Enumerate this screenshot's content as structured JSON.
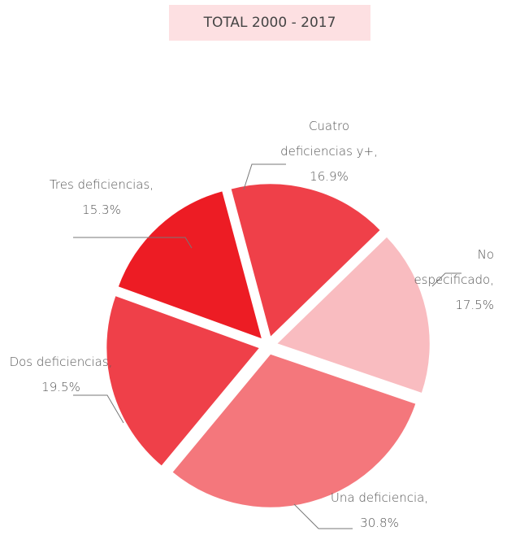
{
  "chart_data": {
    "type": "pie",
    "title": "TOTAL 2000 - 2017",
    "categories": [
      "Cuatro deficiencias y+,",
      "No especificado,",
      "Una deficiencia,",
      "Dos deficiencias,",
      "Tres deficiencias,"
    ],
    "values": [
      16.9,
      17.5,
      30.8,
      19.5,
      15.3
    ],
    "value_labels": [
      "16.9%",
      "17.5%",
      "30.8%",
      "19.5%",
      "15.3%"
    ],
    "colors": [
      "#ef4049",
      "#f9bcc0",
      "#f4777c",
      "#ef4049",
      "#ed1c24"
    ]
  }
}
